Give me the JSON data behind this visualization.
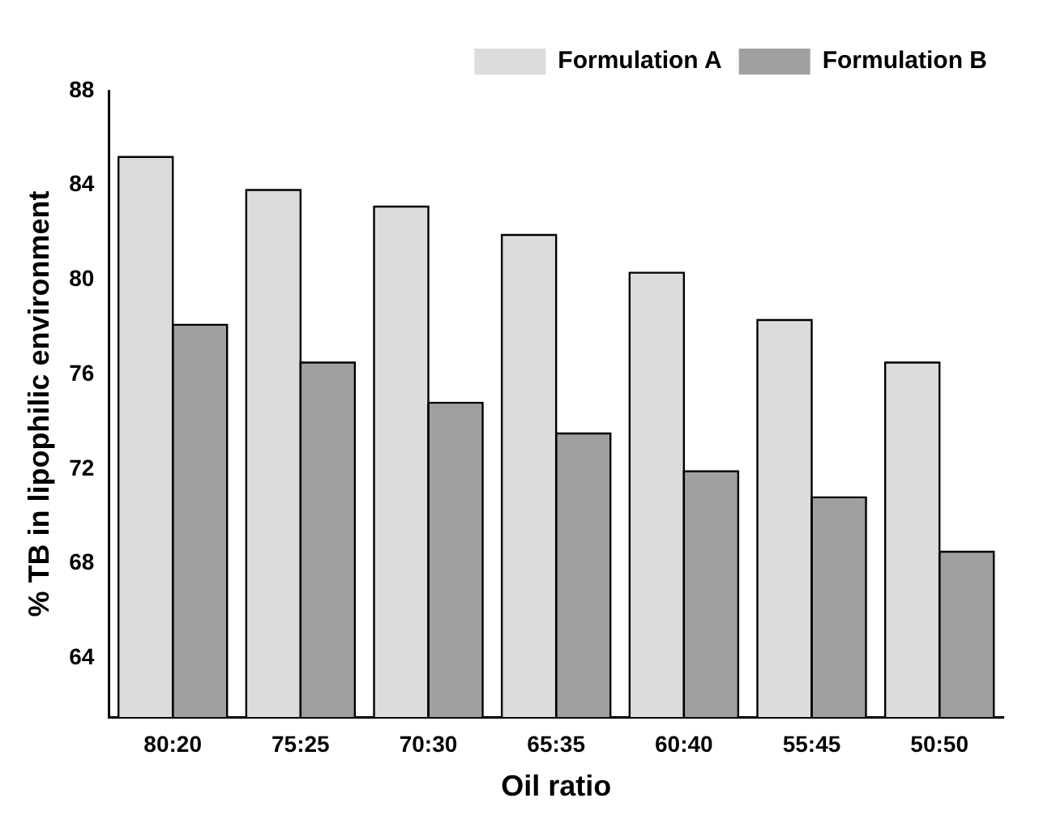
{
  "chart_data": {
    "type": "bar",
    "xlabel": "Oil ratio",
    "ylabel": "% TB in lipophilic environment",
    "categories": [
      "80:20",
      "75:25",
      "70:30",
      "65:35",
      "60:40",
      "55:45",
      "50:50"
    ],
    "series": [
      {
        "name": "Formulation A",
        "color": "#dcdcdc",
        "values": [
          85.2,
          83.8,
          83.1,
          81.9,
          80.3,
          78.3,
          76.5
        ]
      },
      {
        "name": "Formulation B",
        "color": "#a0a0a0",
        "values": [
          78.1,
          76.5,
          74.8,
          73.5,
          71.9,
          70.8,
          68.5
        ]
      }
    ],
    "ylim": [
      61.5,
      88
    ],
    "yticks": [
      64,
      68,
      72,
      76,
      80,
      84,
      88
    ],
    "grid": false,
    "legend": "top right"
  }
}
